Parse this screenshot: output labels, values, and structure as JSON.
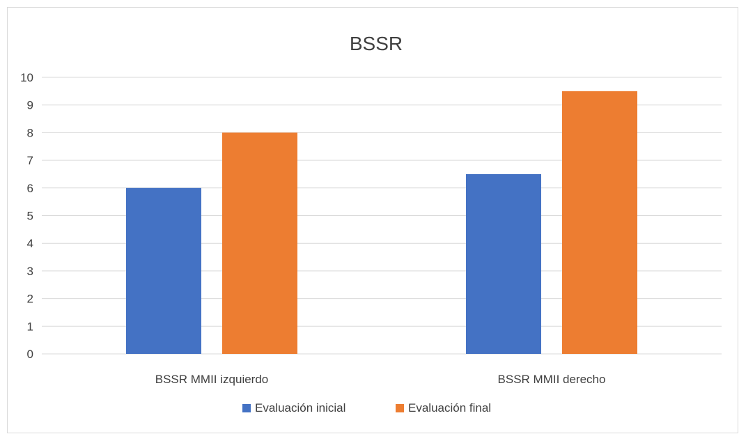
{
  "chart_data": {
    "type": "bar",
    "title": "BSSR",
    "xlabel": "",
    "ylabel": "",
    "ylim": [
      0,
      10
    ],
    "yticks": [
      0,
      1,
      2,
      3,
      4,
      5,
      6,
      7,
      8,
      9,
      10
    ],
    "grid": true,
    "legend_position": "bottom",
    "categories": [
      "BSSR MMII izquierdo",
      "BSSR MMII derecho"
    ],
    "series": [
      {
        "name": "Evaluación inicial",
        "color": "#4472C4",
        "values": [
          6,
          6.5
        ]
      },
      {
        "name": "Evaluación final",
        "color": "#ED7D31",
        "values": [
          8,
          9.5
        ]
      }
    ]
  }
}
